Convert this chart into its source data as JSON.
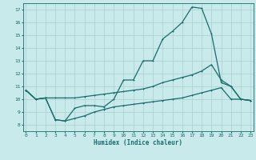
{
  "xlabel": "Humidex (Indice chaleur)",
  "bg_color": "#c8eaea",
  "line_color": "#1a6b6b",
  "grid_color": "#b0d4d4",
  "x_ticks": [
    0,
    1,
    2,
    3,
    4,
    5,
    6,
    7,
    8,
    9,
    10,
    11,
    12,
    13,
    14,
    15,
    16,
    17,
    18,
    19,
    20,
    21,
    22,
    23
  ],
  "y_ticks": [
    8,
    9,
    10,
    11,
    12,
    13,
    14,
    15,
    16,
    17
  ],
  "xlim": [
    -0.3,
    23.3
  ],
  "ylim": [
    7.5,
    17.5
  ],
  "curve1_x": [
    0,
    1,
    2,
    3,
    4,
    5,
    6,
    7,
    8,
    9,
    10,
    11,
    12,
    13,
    14,
    15,
    16,
    17,
    18,
    19,
    20,
    21,
    22,
    23
  ],
  "curve1_y": [
    10.7,
    10.0,
    10.1,
    8.4,
    8.3,
    9.3,
    9.5,
    9.5,
    9.4,
    10.0,
    11.5,
    11.5,
    13.0,
    13.0,
    14.7,
    15.3,
    16.0,
    17.2,
    17.1,
    15.1,
    11.3,
    11.0,
    10.0,
    9.9
  ],
  "curve2_x": [
    0,
    1,
    2,
    3,
    4,
    5,
    6,
    7,
    8,
    9,
    10,
    11,
    12,
    13,
    14,
    15,
    16,
    17,
    18,
    19,
    20,
    21,
    22,
    23
  ],
  "curve2_y": [
    10.7,
    10.0,
    10.1,
    10.1,
    10.1,
    10.1,
    10.2,
    10.3,
    10.4,
    10.5,
    10.6,
    10.7,
    10.8,
    11.0,
    11.3,
    11.5,
    11.7,
    11.9,
    12.2,
    12.7,
    11.5,
    11.0,
    10.0,
    9.9
  ],
  "curve3_x": [
    0,
    1,
    2,
    3,
    4,
    5,
    6,
    7,
    8,
    9,
    10,
    11,
    12,
    13,
    14,
    15,
    16,
    17,
    18,
    19,
    20,
    21,
    22,
    23
  ],
  "curve3_y": [
    10.7,
    10.0,
    10.1,
    8.4,
    8.3,
    8.5,
    8.7,
    9.0,
    9.2,
    9.4,
    9.5,
    9.6,
    9.7,
    9.8,
    9.9,
    10.0,
    10.1,
    10.3,
    10.5,
    10.7,
    10.9,
    10.0,
    10.0,
    9.9
  ]
}
